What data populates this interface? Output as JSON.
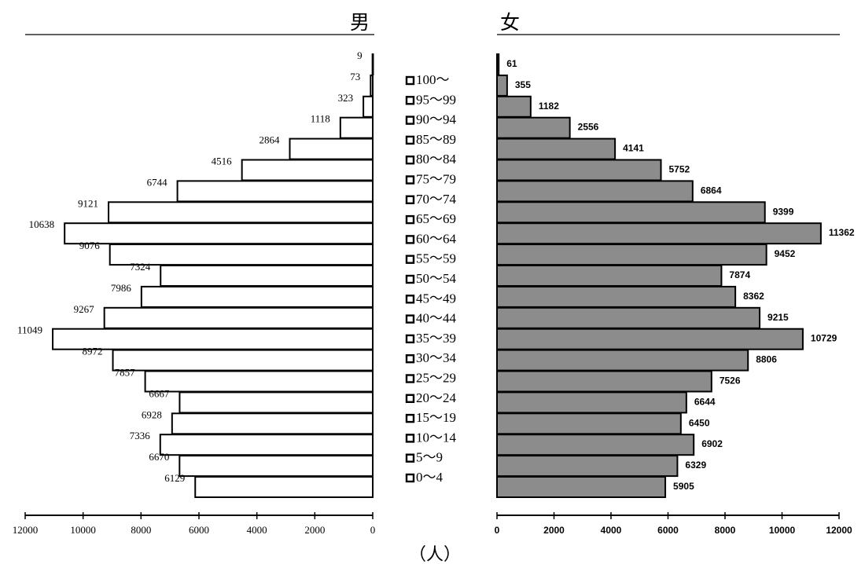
{
  "chart_data": {
    "type": "bar",
    "subtype": "population-pyramid",
    "unit_label": "（人）",
    "categories": [
      "100～",
      "95～99",
      "90～94",
      "85～89",
      "80～84",
      "75～79",
      "70～74",
      "65～69",
      "60～64",
      "55～59",
      "50～54",
      "45～49",
      "40～44",
      "35～39",
      "30～34",
      "25～29",
      "20～24",
      "15～19",
      "10～14",
      "5～9",
      "0～4"
    ],
    "series": [
      {
        "name": "男",
        "color": "#ffffff",
        "values": [
          9,
          73,
          323,
          1118,
          2864,
          4516,
          6744,
          9121,
          10638,
          9076,
          7324,
          7986,
          9267,
          11049,
          8972,
          7857,
          6667,
          6928,
          7336,
          6670,
          6129
        ]
      },
      {
        "name": "女",
        "color": "#8c8c8c",
        "values": [
          61,
          355,
          1182,
          2556,
          4141,
          5752,
          6864,
          9399,
          11362,
          9452,
          7874,
          8362,
          9215,
          10729,
          8806,
          7526,
          6644,
          6450,
          6902,
          6329,
          5905
        ]
      }
    ],
    "xlim": [
      0,
      12000
    ],
    "x_ticks": [
      0,
      2000,
      4000,
      6000,
      8000,
      10000,
      12000
    ],
    "x_tick_labels": [
      "0",
      "2000",
      "4000",
      "6000",
      "8000",
      "10000",
      "12000"
    ],
    "grid": false,
    "legend": "center"
  }
}
